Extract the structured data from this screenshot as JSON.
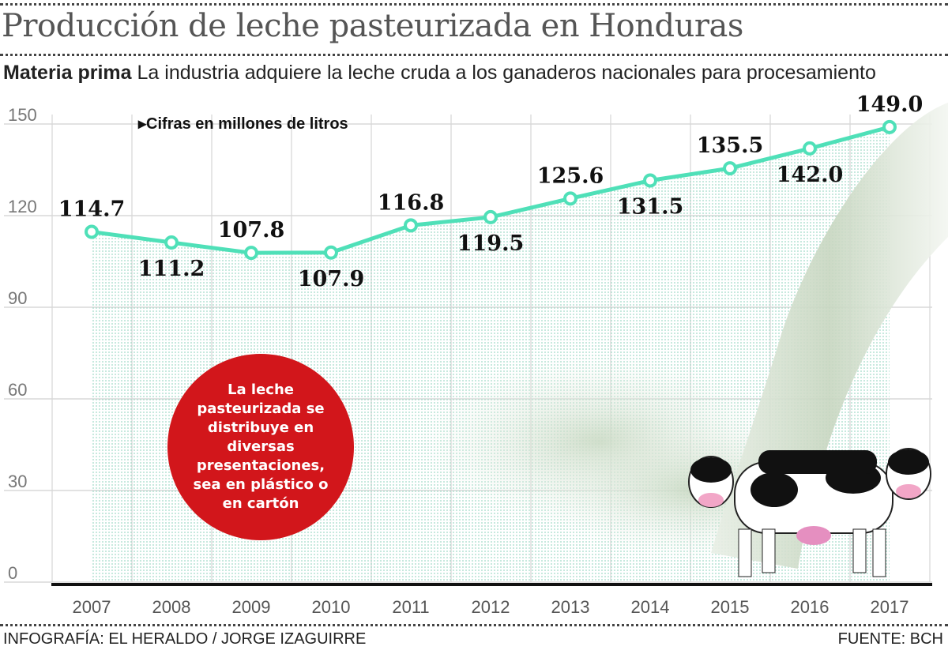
{
  "header": {
    "title": "Producción de leche pasteurizada en Honduras",
    "subtitle_bold": "Materia prima",
    "subtitle_rest": "La industria adquiere la leche cruda a los ganaderos nacionales para procesamiento"
  },
  "chart_data": {
    "type": "line",
    "title": "Producción de leche pasteurizada en Honduras",
    "unit_note": "Cifras en millones de litros",
    "categories": [
      "2007",
      "2008",
      "2009",
      "2010",
      "2011",
      "2012",
      "2013",
      "2014",
      "2015",
      "2016",
      "2017"
    ],
    "values": [
      114.7,
      111.2,
      107.8,
      107.9,
      116.8,
      119.5,
      125.6,
      131.5,
      135.5,
      142.0,
      149.0
    ],
    "value_labels": [
      "114.7",
      "111.2",
      "107.8",
      "107.9",
      "116.8",
      "119.5",
      "125.6",
      "131.5",
      "135.5",
      "142.0",
      "149.0"
    ],
    "yticks": [
      "0",
      "30",
      "60",
      "90",
      "120",
      "150"
    ],
    "ylim": [
      0,
      150
    ],
    "grid": true,
    "line_color": "#4fe0b8",
    "area_fill": "dotted light green"
  },
  "callout": {
    "text": "La leche pasteurizada se distribuye en diversas presentaciones, sea en plástico o en cartón",
    "color": "#d2161b"
  },
  "footer": {
    "credit": "INFOGRAFÍA: EL HERALDO / JORGE IZAGUIRRE",
    "source": "FUENTE: BCH"
  }
}
